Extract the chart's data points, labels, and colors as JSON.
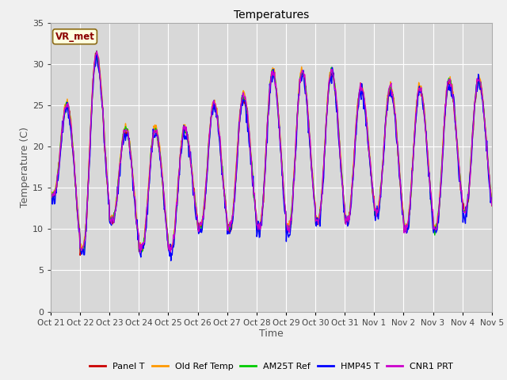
{
  "title": "Temperatures",
  "xlabel": "Time",
  "ylabel": "Temperature (C)",
  "ylim": [
    0,
    35
  ],
  "yticks": [
    0,
    5,
    10,
    15,
    20,
    25,
    30,
    35
  ],
  "series_colors": [
    "#cc0000",
    "#ff9900",
    "#00cc00",
    "#0000ff",
    "#cc00cc"
  ],
  "series_labels": [
    "Panel T",
    "Old Ref Temp",
    "AM25T Ref",
    "HMP45 T",
    "CNR1 PRT"
  ],
  "x_tick_labels": [
    "Oct 21",
    "Oct 22",
    "Oct 23",
    "Oct 24",
    "Oct 25",
    "Oct 26",
    "Oct 27",
    "Oct 28",
    "Oct 29",
    "Oct 30",
    "Oct 31",
    "Nov 1",
    "Nov 2",
    "Nov 3",
    "Nov 4",
    "Nov 5"
  ],
  "legend_label": "VR_met",
  "fig_bg_color": "#f0f0f0",
  "plot_bg_color": "#d8d8d8",
  "linewidth": 1.0,
  "n_days": 15,
  "pts_per_day": 48,
  "day_peaks": [
    25,
    31,
    22,
    22,
    22,
    25,
    26,
    29,
    29,
    29,
    27,
    27,
    27,
    28,
    28
  ],
  "day_troughs": [
    14,
    7.5,
    11,
    7.5,
    7.5,
    10,
    10,
    10,
    10,
    11,
    11,
    12,
    10,
    10,
    12
  ],
  "peak_time": [
    0.55,
    0.55,
    0.55,
    0.55,
    0.55,
    0.55,
    0.55,
    0.55,
    0.55,
    0.55,
    0.55,
    0.55,
    0.55,
    0.55,
    0.55
  ],
  "trough_time": [
    0.1,
    0.1,
    0.1,
    0.1,
    0.1,
    0.1,
    0.1,
    0.1,
    0.1,
    0.1,
    0.1,
    0.1,
    0.1,
    0.1,
    0.1
  ],
  "series_offsets": [
    0.0,
    0.4,
    0.1,
    -0.3,
    0.15
  ],
  "series_noise": [
    0.3,
    0.25,
    0.25,
    0.5,
    0.3
  ]
}
